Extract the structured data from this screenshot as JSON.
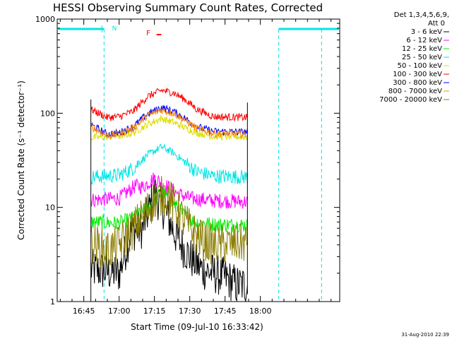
{
  "chart_data": {
    "type": "line",
    "title": "HESSI Observing Summary Count Rates, Corrected",
    "xlabel": "Start Time (09-Jul-10 16:33:42)",
    "ylabel": "Corrected Count Rate (s⁻¹ detector⁻¹)",
    "y_scale": "log",
    "ylim": [
      1,
      1000
    ],
    "y_ticks": [
      1,
      10,
      100,
      1000
    ],
    "y_tick_labels": [
      "1",
      "10",
      "100",
      "1000"
    ],
    "x_ticks_minutes": [
      45,
      60,
      75,
      90,
      105,
      120
    ],
    "x_tick_labels": [
      "16:45",
      "17:00",
      "17:15",
      "17:30",
      "17:45",
      "18:00"
    ],
    "xlim_minutes": [
      33.7,
      153.7
    ],
    "data_window_minutes": [
      48.0,
      114.5
    ],
    "grid": false,
    "legend_position": "outside-top-right",
    "legend_header": [
      "Det 1,3,4,5,6,9,",
      "Att 0"
    ],
    "flags": {
      "N_label": "N",
      "F_label": "F",
      "night_minutes": [
        33.7,
        53.6
      ],
      "night_after_minutes": [
        127.8,
        153.7
      ],
      "markers_minutes": [
        53.6,
        127.8,
        146.0
      ],
      "flare_marker_minutes": [
        73.5,
        75.5
      ],
      "night_color": "#00e5e5",
      "flare_color": "#ff0000"
    },
    "series": [
      {
        "name": "3 - 6 keV",
        "color": "#000000",
        "points": [
          [
            48,
            2.2
          ],
          [
            60,
            2.0
          ],
          [
            65,
            5.5
          ],
          [
            70,
            6.0
          ],
          [
            75,
            14.0
          ],
          [
            80,
            8.5
          ],
          [
            85,
            4.5
          ],
          [
            90,
            3.0
          ],
          [
            95,
            2.2
          ],
          [
            105,
            1.8
          ],
          [
            110,
            1.5
          ],
          [
            114.5,
            1.5
          ]
        ]
      },
      {
        "name": "6 - 12 keV",
        "color": "#ff00ff",
        "points": [
          [
            48,
            12.0
          ],
          [
            60,
            12.5
          ],
          [
            67,
            17.0
          ],
          [
            70,
            16.5
          ],
          [
            75,
            20.5
          ],
          [
            80,
            17.0
          ],
          [
            85,
            14.0
          ],
          [
            90,
            12.5
          ],
          [
            100,
            11.8
          ],
          [
            114.5,
            11.5
          ]
        ]
      },
      {
        "name": "12 - 25 keV",
        "color": "#00ee00",
        "points": [
          [
            48,
            7.0
          ],
          [
            60,
            6.8
          ],
          [
            65,
            7.5
          ],
          [
            70,
            9.0
          ],
          [
            75,
            12.0
          ],
          [
            78,
            14.5
          ],
          [
            82,
            12.0
          ],
          [
            87,
            8.5
          ],
          [
            92,
            7.0
          ],
          [
            100,
            6.6
          ],
          [
            114.5,
            6.5
          ]
        ]
      },
      {
        "name": "25 - 50 keV",
        "color": "#00e5e5",
        "points": [
          [
            48,
            21.0
          ],
          [
            60,
            22.0
          ],
          [
            66,
            26.0
          ],
          [
            72,
            36.0
          ],
          [
            78,
            44.0
          ],
          [
            83,
            38.0
          ],
          [
            88,
            30.0
          ],
          [
            93,
            24.0
          ],
          [
            100,
            21.5
          ],
          [
            114.5,
            21.0
          ]
        ]
      },
      {
        "name": "50 - 100 keV",
        "color": "#dddd00",
        "points": [
          [
            48,
            55.0
          ],
          [
            60,
            57.0
          ],
          [
            66,
            62.0
          ],
          [
            72,
            76.0
          ],
          [
            78,
            88.0
          ],
          [
            83,
            80.0
          ],
          [
            88,
            70.0
          ],
          [
            93,
            62.0
          ],
          [
            100,
            57.0
          ],
          [
            114.5,
            56.0
          ]
        ]
      },
      {
        "name": "100 - 300 keV",
        "color": "#ff0000",
        "points": [
          [
            48,
            110.0
          ],
          [
            55,
            90.0
          ],
          [
            60,
            92.0
          ],
          [
            66,
            105.0
          ],
          [
            72,
            150.0
          ],
          [
            78,
            175.0
          ],
          [
            83,
            165.0
          ],
          [
            88,
            140.0
          ],
          [
            93,
            110.0
          ],
          [
            100,
            92.0
          ],
          [
            114.5,
            90.0
          ]
        ]
      },
      {
        "name": "300 - 800 keV",
        "color": "#0000ff",
        "points": [
          [
            48,
            75.0
          ],
          [
            55,
            60.0
          ],
          [
            60,
            62.0
          ],
          [
            66,
            72.0
          ],
          [
            72,
            98.0
          ],
          [
            78,
            115.0
          ],
          [
            83,
            105.0
          ],
          [
            88,
            88.0
          ],
          [
            93,
            72.0
          ],
          [
            100,
            64.0
          ],
          [
            114.5,
            63.0
          ]
        ]
      },
      {
        "name": "800 - 7000 keV",
        "color": "#ff8800",
        "points": [
          [
            48,
            72.0
          ],
          [
            55,
            58.0
          ],
          [
            60,
            60.0
          ],
          [
            66,
            69.0
          ],
          [
            72,
            94.0
          ],
          [
            78,
            108.0
          ],
          [
            83,
            100.0
          ],
          [
            88,
            84.0
          ],
          [
            93,
            69.0
          ],
          [
            100,
            61.0
          ],
          [
            114.5,
            60.0
          ]
        ]
      },
      {
        "name": "7000 - 20000 keV",
        "color": "#8b7d00",
        "points": [
          [
            48,
            4.2
          ],
          [
            55,
            3.5
          ],
          [
            60,
            4.0
          ],
          [
            66,
            6.0
          ],
          [
            70,
            8.0
          ],
          [
            75,
            12.0
          ],
          [
            80,
            14.0
          ],
          [
            85,
            9.0
          ],
          [
            90,
            6.0
          ],
          [
            95,
            4.5
          ],
          [
            100,
            4.0
          ],
          [
            114.5,
            4.2
          ]
        ]
      }
    ]
  },
  "footer": {
    "date_stamp": "31-Aug-2010 22:39"
  }
}
